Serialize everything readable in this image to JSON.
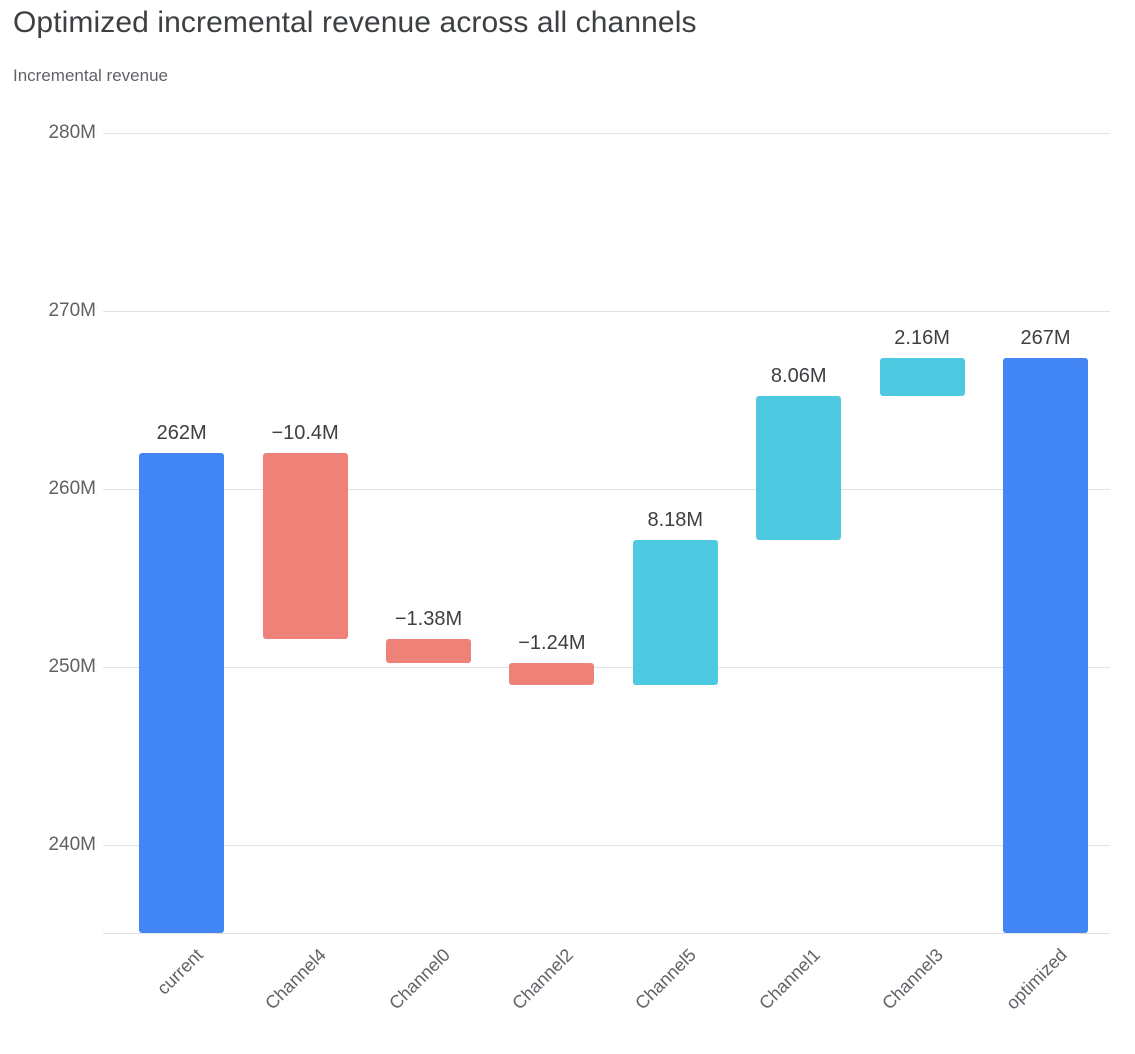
{
  "header": {
    "title": "Optimized incremental revenue across all channels",
    "subtitle": "Incremental revenue"
  },
  "chart_data": {
    "type": "bar",
    "subtype": "waterfall",
    "title": "Optimized incremental revenue across all channels",
    "ylabel": "Incremental revenue",
    "xlabel": "",
    "grid": true,
    "legend": false,
    "categories": [
      "current",
      "Channel4",
      "Channel0",
      "Channel2",
      "Channel5",
      "Channel1",
      "Channel3",
      "optimized"
    ],
    "y_axis": {
      "min": 235,
      "max": 283,
      "unit": "M",
      "ticks": [
        {
          "value": 280,
          "label": "280M"
        },
        {
          "value": 270,
          "label": "270M"
        },
        {
          "value": 260,
          "label": "260M"
        },
        {
          "value": 250,
          "label": "250M"
        },
        {
          "value": 240,
          "label": "240M"
        }
      ]
    },
    "bars": [
      {
        "label": "current",
        "value": 262,
        "display": "262M",
        "kind": "total",
        "start": 0,
        "end": 262
      },
      {
        "label": "Channel4",
        "value": -10.4,
        "display": "−10.4M",
        "kind": "decrease",
        "start": 262,
        "end": 251.6
      },
      {
        "label": "Channel0",
        "value": -1.38,
        "display": "−1.38M",
        "kind": "decrease",
        "start": 251.6,
        "end": 250.22
      },
      {
        "label": "Channel2",
        "value": -1.24,
        "display": "−1.24M",
        "kind": "decrease",
        "start": 250.22,
        "end": 248.98
      },
      {
        "label": "Channel5",
        "value": 8.18,
        "display": "8.18M",
        "kind": "increase",
        "start": 248.98,
        "end": 257.16
      },
      {
        "label": "Channel1",
        "value": 8.06,
        "display": "8.06M",
        "kind": "increase",
        "start": 257.16,
        "end": 265.22
      },
      {
        "label": "Channel3",
        "value": 2.16,
        "display": "2.16M",
        "kind": "increase",
        "start": 265.22,
        "end": 267.38
      },
      {
        "label": "optimized",
        "value": 267.38,
        "display": "267M",
        "kind": "total",
        "start": 0,
        "end": 267.38
      }
    ],
    "colors": {
      "total": "#4285f4",
      "decrease": "#ee8278",
      "increase": "#4dc9e2",
      "gridline": "#e3e3e3",
      "title_text": "#3c4043",
      "axis_text": "#5f6368",
      "value_text": "#3c4043"
    }
  }
}
